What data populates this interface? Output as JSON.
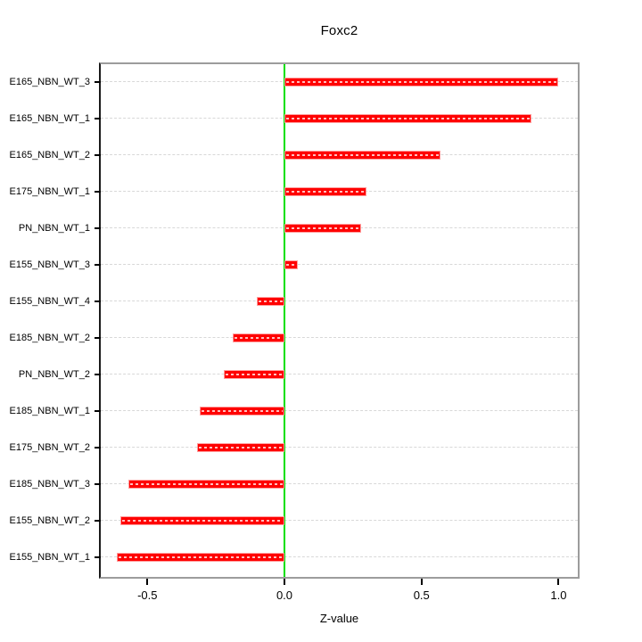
{
  "chart_data": {
    "type": "bar",
    "orientation": "horizontal",
    "title": "Foxc2",
    "xlabel": "Z-value",
    "ylabel": "",
    "categories": [
      "E165_NBN_WT_3",
      "E165_NBN_WT_1",
      "E165_NBN_WT_2",
      "E175_NBN_WT_1",
      "PN_NBN_WT_1",
      "E155_NBN_WT_3",
      "E155_NBN_WT_4",
      "E185_NBN_WT_2",
      "PN_NBN_WT_2",
      "E185_NBN_WT_1",
      "E175_NBN_WT_2",
      "E185_NBN_WT_3",
      "E155_NBN_WT_2",
      "E155_NBN_WT_1"
    ],
    "values": [
      1.0,
      0.9,
      0.57,
      0.3,
      0.28,
      0.05,
      -0.1,
      -0.19,
      -0.22,
      -0.31,
      -0.32,
      -0.57,
      -0.6,
      -0.61
    ],
    "xlim": [
      -0.67,
      1.07
    ],
    "x_ticks": [
      -0.5,
      0.0,
      0.5,
      1.0
    ],
    "x_tick_labels": [
      "-0.5",
      "0.0",
      "0.5",
      "1.0"
    ],
    "grid": true,
    "legend_position": "none",
    "zero_line": 0,
    "colors": {
      "bar_fill": "#ff0000",
      "bar_border": "#ff9e9e",
      "bar_dash": "rgba(255,255,255,0.75)",
      "zero_line": "#00e000",
      "gridline": "#d8d8d8",
      "box": "#9c9c9c",
      "axis": "#000000",
      "background": "#ffffff"
    }
  }
}
